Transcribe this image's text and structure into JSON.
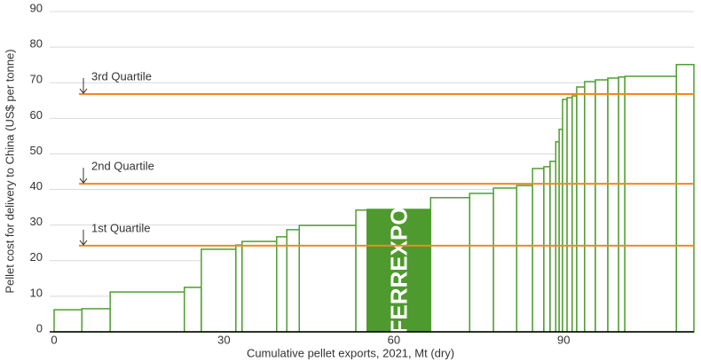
{
  "chart_data": {
    "type": "cost-curve",
    "x_label": "Cumulative pellet exports, 2021, Mt (dry)",
    "y_label": "Pellet cost for delivery to China (US$ per tonne)",
    "edges": [
      0,
      4.9,
      9.9,
      23.0,
      26.0,
      32.1,
      33.2,
      39.3,
      41.1,
      43.3,
      53.3,
      55.3,
      66.5,
      73.4,
      77.6,
      81.7,
      84.5,
      86.5,
      87.6,
      88.6,
      89.2,
      89.8,
      90.6,
      91.5,
      92.3,
      93.7,
      95.6,
      97.8,
      99.7,
      100.8,
      109.9,
      113.0
    ],
    "values": [
      6.2,
      6.5,
      11.2,
      12.5,
      23.2,
      24.4,
      25.4,
      26.7,
      28.7,
      29.9,
      34.2,
      34.4,
      37.7,
      38.9,
      40.4,
      41.1,
      45.9,
      46.4,
      47.9,
      53.4,
      56.9,
      65.3,
      65.8,
      66.3,
      68.8,
      70.3,
      70.8,
      71.3,
      71.6,
      71.8,
      75.1
    ],
    "color": "#4e9f30",
    "highlight": {
      "index": 11,
      "label": "FERREXPO",
      "color": "#4e9a2e"
    },
    "reference_lines": [
      {
        "label": "3rd Quartile",
        "value": 66.8
      },
      {
        "label": "2nd Quartile",
        "value": 41.6
      },
      {
        "label": "1st Quartile",
        "value": 24.2
      }
    ],
    "reference_color": "#f0891e",
    "xlim": [
      0,
      113
    ],
    "xticks": [
      0,
      30,
      60,
      90
    ],
    "ylim": [
      0,
      90
    ],
    "yticks": [
      0,
      10,
      20,
      30,
      40,
      50,
      60,
      70,
      80,
      90
    ],
    "grid": true
  }
}
